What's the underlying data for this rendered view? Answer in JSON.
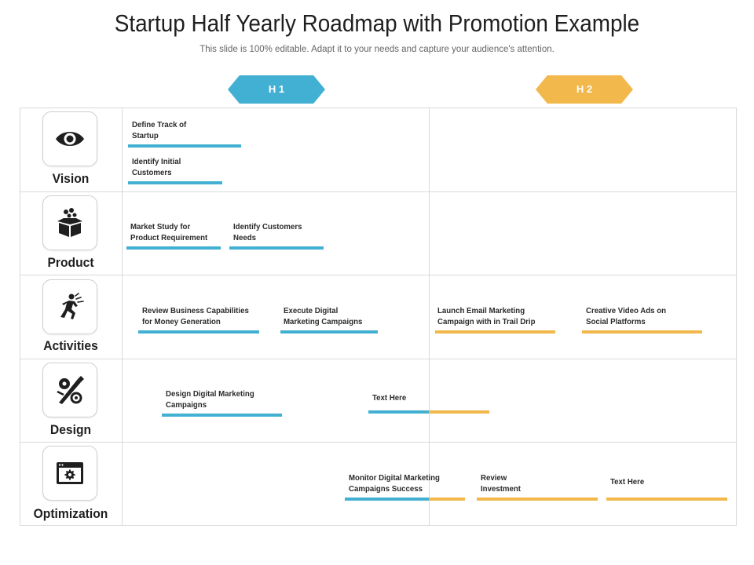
{
  "header": {
    "title": "Startup Half Yearly Roadmap with Promotion Example",
    "subtitle": "This slide is 100% editable. Adapt it to your needs and capture your audience's attention."
  },
  "phases": [
    "H 1",
    "H 2"
  ],
  "colors": {
    "h1": "#42b0d3",
    "h2": "#f2b84b",
    "grid": "#d9d9d9"
  },
  "rows": [
    {
      "label": "Vision",
      "icon": "eye-icon"
    },
    {
      "label": "Product",
      "icon": "box-icon"
    },
    {
      "label": "Activities",
      "icon": "running-person-icon"
    },
    {
      "label": "Design",
      "icon": "design-tools-icon"
    },
    {
      "label": "Optimization",
      "icon": "browser-settings-icon"
    }
  ],
  "tasks": {
    "vision": [
      "Define Track of\nStartup",
      "Identify Initial\nCustomers"
    ],
    "product": [
      "Market Study for\nProduct Requirement",
      "Identify Customers\nNeeds"
    ],
    "activities": [
      "Review Business Capabilities\nfor Money Generation",
      "Execute Digital\nMarketing Campaigns",
      "Launch Email Marketing\nCampaign with in Trail Drip",
      "Creative Video Ads on\nSocial Platforms"
    ],
    "design": [
      "Design Digital Marketing\nCampaigns",
      "Text Here"
    ],
    "optimization": [
      "Monitor Digital Marketing\nCampaigns Success",
      "Review\nInvestment",
      "Text Here"
    ]
  }
}
